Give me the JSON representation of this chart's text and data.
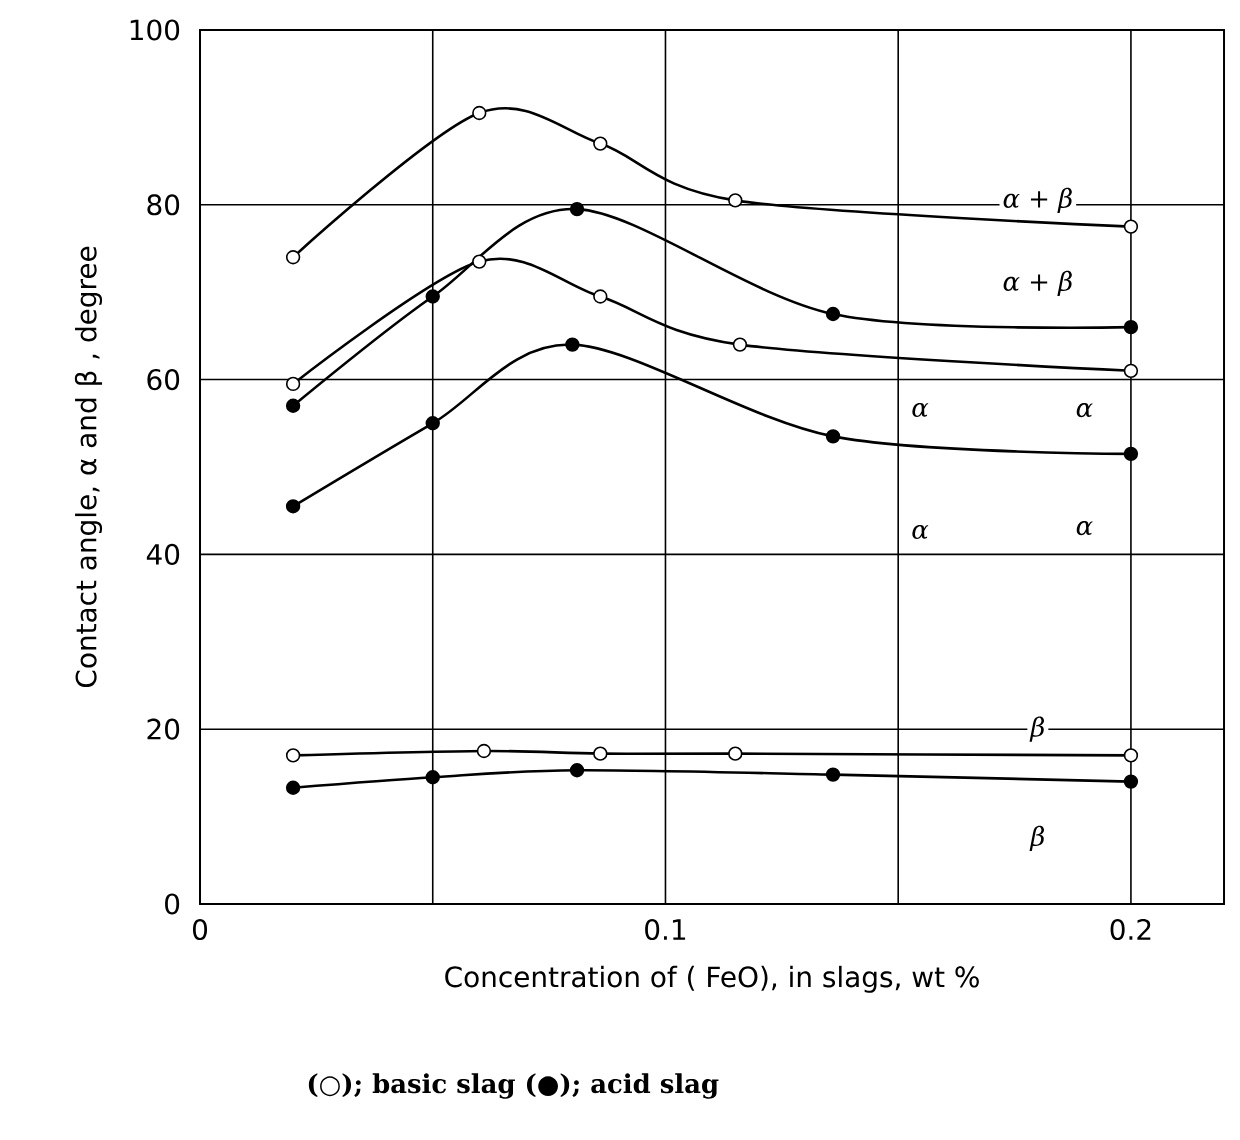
{
  "chart_data": {
    "type": "line",
    "xlabel": "Concentration  of  ( FeO),  in  slags,  wt %",
    "ylabel": "Contact angle,  α and β ,  degree",
    "xlim": [
      0,
      0.22
    ],
    "ylim": [
      0,
      100
    ],
    "xticks": [
      0,
      {
        "value": 0.05,
        "label": null
      },
      0.1,
      {
        "value": 0.15,
        "label": null
      },
      0.2
    ],
    "yticks": [
      0,
      20,
      40,
      60,
      80,
      100
    ],
    "grid": true,
    "marker": "circle",
    "line_style": "solid",
    "series": [
      {
        "name": "α + β",
        "color": "#ffffff",
        "x": [
          0.02,
          0.06,
          0.086,
          0.115,
          0.2
        ],
        "values": [
          74,
          90.5,
          87,
          80.5,
          77.5
        ]
      },
      {
        "name": "α + β",
        "color": "#000000",
        "x": [
          0.02,
          0.05,
          0.081,
          0.136,
          0.2
        ],
        "values": [
          57,
          69.5,
          79.5,
          67.5,
          66
        ]
      },
      {
        "name": "α",
        "color": "#ffffff",
        "x": [
          0.02,
          0.06,
          0.086,
          0.116,
          0.2
        ],
        "values": [
          59.5,
          73.5,
          69.5,
          64,
          61
        ]
      },
      {
        "name": "α",
        "color": "#000000",
        "x": [
          0.02,
          0.05,
          0.08,
          0.136,
          0.2
        ],
        "values": [
          45.5,
          55,
          64,
          53.5,
          51.5
        ]
      },
      {
        "name": "β",
        "color": "#ffffff",
        "x": [
          0.02,
          0.061,
          0.086,
          0.115,
          0.2
        ],
        "values": [
          17,
          17.5,
          17.2,
          17.2,
          17
        ]
      },
      {
        "name": "β",
        "color": "#000000",
        "x": [
          0.02,
          0.05,
          0.081,
          0.136,
          0.2
        ],
        "values": [
          13.3,
          14.5,
          15.3,
          14.8,
          14
        ]
      }
    ],
    "annotations": [
      "α",
      "α",
      "(○);  basic slag   (●);  acid slag"
    ]
  }
}
